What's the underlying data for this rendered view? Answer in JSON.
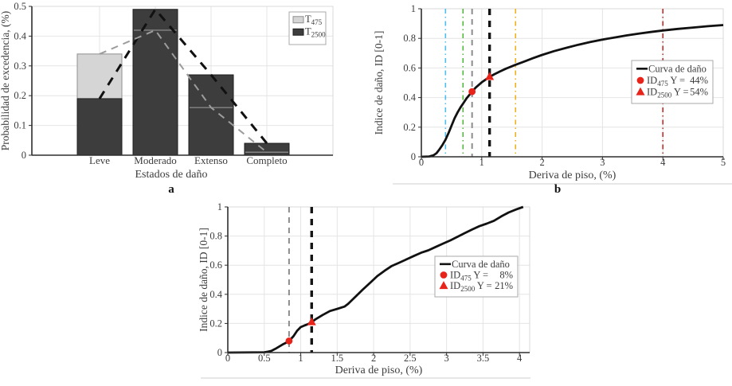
{
  "figure": {
    "background": "#ffffff",
    "colors": {
      "bar_light": "#d5d5d5",
      "bar_light_edge": "#8f8f8f",
      "bar_dark": "#3d3d3d",
      "bar_dark_edge": "#1f1f1f",
      "trend_dark": "#111111",
      "trend_light": "#9c9c9c",
      "curve": "#111111",
      "marker_red": "#e8231a",
      "ref_cyan": "#4DBEEE",
      "ref_green": "#53b43c",
      "ref_gray": "#8c8c8c",
      "ref_black": "#141414",
      "ref_orange": "#EDB120",
      "ref_red": "#cc2a25",
      "grid": "#e4e4e4",
      "border": "#d9d9d9",
      "axis": "#2e2e2e",
      "text": "#3c3c3c",
      "legend_border": "#a9a9a9"
    }
  },
  "chart_data": [
    {
      "id": "a",
      "type": "bar",
      "panel_label": "a",
      "xlabel": "Estados de daño",
      "ylabel": "Probabilidad de excedencia, (%)",
      "categories": [
        "Leve",
        "Moderado",
        "Extenso",
        "Completo"
      ],
      "series": [
        {
          "name": "T475",
          "legend_main": "T",
          "legend_sub": "475",
          "swatch": "light",
          "values": [
            0.34,
            0.42,
            0.16,
            0.01
          ]
        },
        {
          "name": "T2500",
          "legend_main": "T",
          "legend_sub": "2500",
          "swatch": "dark",
          "values": [
            0.19,
            0.49,
            0.27,
            0.04
          ]
        }
      ],
      "trend_lines": [
        {
          "series": 1,
          "tone": "dark"
        },
        {
          "series": 0,
          "tone": "light"
        }
      ],
      "ylim": [
        0,
        0.5
      ],
      "yticks": [
        "0",
        "0.1",
        "0.2",
        "0.3",
        "0.4",
        "0.5"
      ],
      "ytick_vals": [
        0,
        0.1,
        0.2,
        0.3,
        0.4,
        0.5
      ],
      "grid": "on",
      "legend_position": "top-right"
    },
    {
      "id": "b",
      "type": "line",
      "panel_label": "b",
      "xlabel": "Deriva de piso, (%)",
      "ylabel": "Indice de daño, ID [0-1]",
      "xlim": [
        0,
        5
      ],
      "ylim": [
        0,
        1
      ],
      "xticks": [
        "0",
        "1",
        "2",
        "3",
        "4",
        "5"
      ],
      "xtick_vals": [
        0,
        1,
        2,
        3,
        4,
        5
      ],
      "yticks": [
        "0",
        "0.2",
        "0.4",
        "0.6",
        "0.8",
        "1"
      ],
      "ytick_vals": [
        0,
        0.2,
        0.4,
        0.6,
        0.8,
        1
      ],
      "grid": "on",
      "curve": {
        "name": "Curva de daño",
        "points": [
          [
            0,
            0
          ],
          [
            0.13,
            0.002
          ],
          [
            0.2,
            0.01
          ],
          [
            0.25,
            0.024
          ],
          [
            0.3,
            0.05
          ],
          [
            0.35,
            0.08
          ],
          [
            0.4,
            0.115
          ],
          [
            0.45,
            0.16
          ],
          [
            0.5,
            0.21
          ],
          [
            0.55,
            0.26
          ],
          [
            0.6,
            0.3
          ],
          [
            0.65,
            0.335
          ],
          [
            0.7,
            0.365
          ],
          [
            0.75,
            0.395
          ],
          [
            0.8,
            0.42
          ],
          [
            0.84,
            0.44
          ],
          [
            0.9,
            0.467
          ],
          [
            1,
            0.503
          ],
          [
            1.06,
            0.52
          ],
          [
            1.13,
            0.54
          ],
          [
            1.2,
            0.556
          ],
          [
            1.3,
            0.576
          ],
          [
            1.4,
            0.595
          ],
          [
            1.55,
            0.62
          ],
          [
            1.7,
            0.643
          ],
          [
            1.85,
            0.666
          ],
          [
            2,
            0.688
          ],
          [
            2.2,
            0.714
          ],
          [
            2.4,
            0.736
          ],
          [
            2.6,
            0.757
          ],
          [
            2.8,
            0.775
          ],
          [
            3,
            0.792
          ],
          [
            3.2,
            0.806
          ],
          [
            3.4,
            0.82
          ],
          [
            3.6,
            0.832
          ],
          [
            3.8,
            0.843
          ],
          [
            4,
            0.853
          ],
          [
            4.25,
            0.864
          ],
          [
            4.5,
            0.873
          ],
          [
            4.75,
            0.882
          ],
          [
            5,
            0.89
          ]
        ]
      },
      "ref_lines": [
        {
          "x": 0.4,
          "color_key": "ref_cyan",
          "style": "dashdot",
          "width": 1.6
        },
        {
          "x": 0.69,
          "color_key": "ref_green",
          "style": "dashdot",
          "width": 1.6
        },
        {
          "x": 0.84,
          "color_key": "ref_gray",
          "style": "dash",
          "width": 2
        },
        {
          "x": 1.13,
          "color_key": "ref_black",
          "style": "dash",
          "width": 3.4
        },
        {
          "x": 1.56,
          "color_key": "ref_orange",
          "style": "dashdot",
          "width": 1.6
        },
        {
          "x": 4.0,
          "color_key": "ref_red",
          "style": "dashdot",
          "width": 1.6
        }
      ],
      "markers": [
        {
          "shape": "circle",
          "x": 0.84,
          "y": 0.44
        },
        {
          "shape": "triangle",
          "x": 1.13,
          "y": 0.54
        }
      ],
      "legend": [
        {
          "swatch": "line",
          "label": "Curva de daño"
        },
        {
          "swatch": "circle",
          "prefix": "ID",
          "sub": "475",
          "mid": " Y =",
          "value": "44%"
        },
        {
          "swatch": "triangle",
          "prefix": "ID",
          "sub": "2500",
          "mid": " Y =",
          "value": "54%"
        }
      ]
    },
    {
      "id": "c",
      "type": "line",
      "panel_label": "",
      "xlabel": "Deriva de piso, (%)",
      "ylabel": "Indice de daño, ID [0-1]",
      "xlim": [
        0,
        4.14
      ],
      "ylim": [
        0,
        1
      ],
      "xticks": [
        "0",
        "0.5",
        "1",
        "1.5",
        "2",
        "2.5",
        "3",
        "3.5",
        "4"
      ],
      "xtick_vals": [
        0,
        0.5,
        1,
        1.5,
        2,
        2.5,
        3,
        3.5,
        4
      ],
      "yticks": [
        "0",
        "0.2",
        "0.4",
        "0.6",
        "0.8",
        "1"
      ],
      "ytick_vals": [
        0,
        0.2,
        0.4,
        0.6,
        0.8,
        1
      ],
      "grid": "on",
      "curve": {
        "name": "Curva de daño",
        "points": [
          [
            0,
            0
          ],
          [
            0.5,
            0.002
          ],
          [
            0.55,
            0.006
          ],
          [
            0.6,
            0.012
          ],
          [
            0.65,
            0.025
          ],
          [
            0.7,
            0.04
          ],
          [
            0.75,
            0.055
          ],
          [
            0.8,
            0.068
          ],
          [
            0.84,
            0.08
          ],
          [
            0.9,
            0.112
          ],
          [
            0.95,
            0.15
          ],
          [
            1,
            0.175
          ],
          [
            1.05,
            0.186
          ],
          [
            1.1,
            0.195
          ],
          [
            1.15,
            0.21
          ],
          [
            1.2,
            0.228
          ],
          [
            1.3,
            0.258
          ],
          [
            1.4,
            0.285
          ],
          [
            1.5,
            0.3
          ],
          [
            1.6,
            0.316
          ],
          [
            1.65,
            0.335
          ],
          [
            1.75,
            0.383
          ],
          [
            1.85,
            0.432
          ],
          [
            1.95,
            0.478
          ],
          [
            2.05,
            0.525
          ],
          [
            2.15,
            0.562
          ],
          [
            2.25,
            0.595
          ],
          [
            2.35,
            0.617
          ],
          [
            2.45,
            0.64
          ],
          [
            2.55,
            0.663
          ],
          [
            2.65,
            0.685
          ],
          [
            2.75,
            0.702
          ],
          [
            2.85,
            0.725
          ],
          [
            2.95,
            0.748
          ],
          [
            3.05,
            0.77
          ],
          [
            3.15,
            0.795
          ],
          [
            3.25,
            0.82
          ],
          [
            3.35,
            0.845
          ],
          [
            3.45,
            0.868
          ],
          [
            3.55,
            0.885
          ],
          [
            3.65,
            0.905
          ],
          [
            3.75,
            0.935
          ],
          [
            3.85,
            0.962
          ],
          [
            3.95,
            0.982
          ],
          [
            4.05,
            1
          ]
        ]
      },
      "ref_lines": [
        {
          "x": 0.84,
          "color_key": "ref_gray",
          "style": "dash",
          "width": 2
        },
        {
          "x": 1.15,
          "color_key": "ref_black",
          "style": "dash",
          "width": 3.4
        }
      ],
      "markers": [
        {
          "shape": "circle",
          "x": 0.84,
          "y": 0.08
        },
        {
          "shape": "triangle",
          "x": 1.15,
          "y": 0.21
        }
      ],
      "legend": [
        {
          "swatch": "line",
          "label": "Curva de daño"
        },
        {
          "swatch": "circle",
          "prefix": "ID",
          "sub": "475",
          "mid": " Y =",
          "value": "8%"
        },
        {
          "swatch": "triangle",
          "prefix": "ID",
          "sub": "2500",
          "mid": " Y =",
          "value": "21%"
        }
      ]
    }
  ]
}
